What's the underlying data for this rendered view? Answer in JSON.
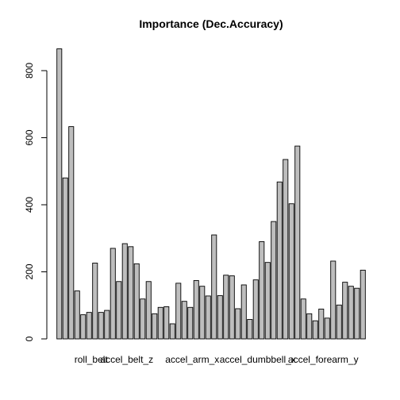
{
  "chart_data": {
    "type": "bar",
    "title": "Importance (Dec.Accuracy)",
    "xlabel": "",
    "ylabel": "",
    "ylim": [
      0,
      880
    ],
    "yticks": [
      0,
      200,
      400,
      600,
      800
    ],
    "category_labels_shown": [
      "roll_belt",
      "accel_belt_z",
      "accel_arm_x",
      "accel_dumbbell_x",
      "accel_forearm_y"
    ],
    "category_label_positions": [
      0,
      6,
      17,
      28,
      39
    ],
    "bar_color": "#bebebe",
    "values": [
      865,
      480,
      633,
      143,
      72,
      79,
      226,
      79,
      85,
      270,
      171,
      284,
      275,
      224,
      119,
      171,
      75,
      94,
      96,
      45,
      166,
      112,
      94,
      174,
      157,
      128,
      310,
      129,
      190,
      188,
      90,
      161,
      58,
      176,
      290,
      228,
      350,
      468,
      535,
      403,
      575,
      119,
      75,
      54,
      89,
      62,
      232,
      101,
      169,
      157,
      151,
      205
    ]
  }
}
